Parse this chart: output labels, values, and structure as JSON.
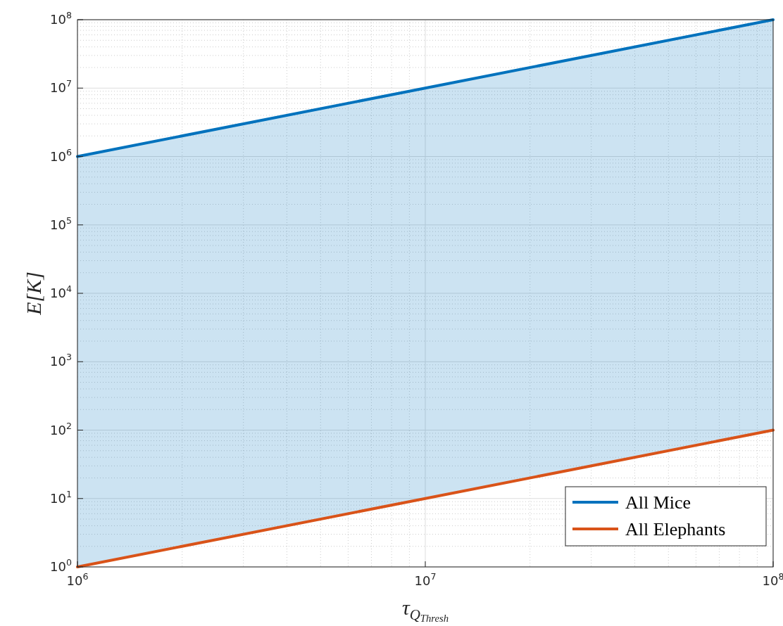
{
  "chart_data": {
    "type": "line",
    "xlabel": "τ$_{Q}$$_{Thresh}$",
    "ylabel": "E[K]",
    "log": "xy",
    "grid": true,
    "legend": "bottom right",
    "line_style": "solid",
    "marker": "none",
    "x": [
      1000000,
      100000000
    ],
    "series": [
      {
        "name": "All Mice",
        "color": "#0072bd",
        "values": [
          1000000,
          100000000
        ],
        "lower": [
          1,
          100
        ],
        "upper": [
          1000000,
          100000000
        ]
      },
      {
        "name": "All Elephants",
        "color": "#d95319",
        "values": [
          1,
          100
        ]
      }
    ],
    "xlim": [
      1000000,
      100000000
    ],
    "xticks": [
      {
        "value": 1000000,
        "label": "10$^{6}$"
      },
      {
        "value": 10000000,
        "label": "10$^{7}$"
      },
      {
        "value": 100000000,
        "label": "10$^{8}$"
      }
    ],
    "ylim": [
      1,
      100000000
    ],
    "yticks": [
      {
        "value": 1,
        "label": "10$^{0}$"
      },
      {
        "value": 10,
        "label": "10$^{1}$"
      },
      {
        "value": 100,
        "label": "10$^{2}$"
      },
      {
        "value": 1000,
        "label": "10$^{3}$"
      },
      {
        "value": 10000,
        "label": "10$^{4}$"
      },
      {
        "value": 100000,
        "label": "10$^{5}$"
      },
      {
        "value": 1000000,
        "label": "10$^{6}$"
      },
      {
        "value": 10000000,
        "label": "10$^{7}$"
      },
      {
        "value": 100000000,
        "label": "10$^{8}$"
      }
    ]
  }
}
